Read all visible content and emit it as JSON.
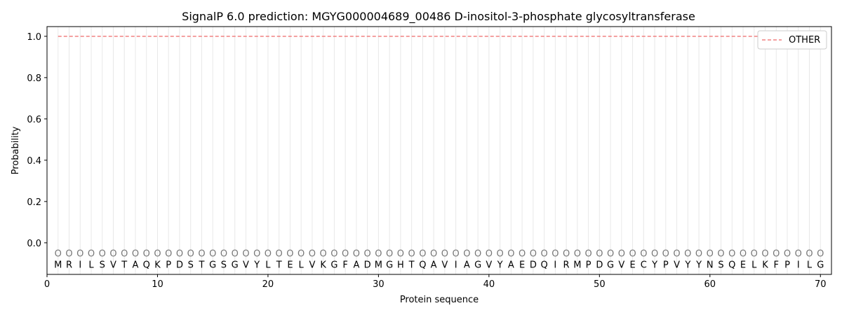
{
  "chart_data": {
    "type": "line",
    "title": "SignalP 6.0 prediction: MGYG000004689_00486 D-inositol-3-phosphate glycosyltransferase",
    "xlabel": "Protein sequence",
    "ylabel": "Probability",
    "xlim": [
      0,
      71
    ],
    "ylim": [
      -0.153,
      1.047
    ],
    "xticks": [
      0,
      10,
      20,
      30,
      40,
      50,
      60,
      70
    ],
    "yticks": [
      0.0,
      0.2,
      0.4,
      0.6,
      0.8,
      1.0
    ],
    "ytick_labels": [
      "0.0",
      "0.2",
      "0.4",
      "0.6",
      "0.8",
      "1.0"
    ],
    "grid": "vertical at each residue",
    "legend_placement": "top-right",
    "sequence": [
      "M",
      "R",
      "I",
      "L",
      "S",
      "V",
      "T",
      "A",
      "Q",
      "K",
      "P",
      "D",
      "S",
      "T",
      "G",
      "S",
      "G",
      "V",
      "Y",
      "L",
      "T",
      "E",
      "L",
      "V",
      "K",
      "G",
      "F",
      "A",
      "D",
      "M",
      "G",
      "H",
      "T",
      "Q",
      "A",
      "V",
      "I",
      "A",
      "G",
      "V",
      "Y",
      "A",
      "E",
      "D",
      "Q",
      "I",
      "R",
      "M",
      "P",
      "D",
      "G",
      "V",
      "E",
      "C",
      "Y",
      "P",
      "V",
      "Y",
      "Y",
      "N",
      "S",
      "Q",
      "E",
      "L",
      "K",
      "F",
      "P",
      "I",
      "L",
      "G"
    ],
    "predicted_label": "O",
    "series": [
      {
        "name": "OTHER",
        "color": "#f08080",
        "style": "dashed",
        "x_range": [
          1,
          70
        ],
        "value": 1.0
      }
    ]
  }
}
